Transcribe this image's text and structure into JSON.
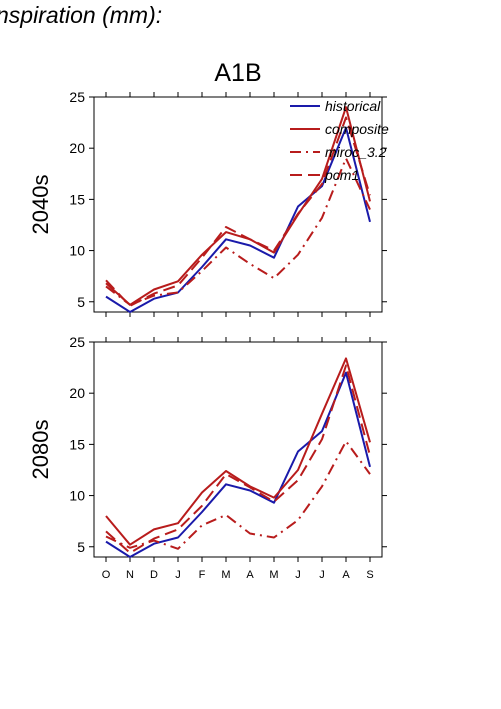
{
  "page_title": "nspiration (mm):",
  "chart_data": [
    {
      "type": "line",
      "title": "A1B",
      "ylabel": "2040s",
      "xlabel": "",
      "categories": [
        "O",
        "N",
        "D",
        "J",
        "F",
        "M",
        "A",
        "M",
        "J",
        "J",
        "A",
        "S"
      ],
      "ylim": [
        4,
        25
      ],
      "yticks": [
        5,
        10,
        15,
        20,
        25
      ],
      "legend": "top-right",
      "series": [
        {
          "name": "historical",
          "color": "#1a1aaa",
          "dash": "solid",
          "values": [
            5.5,
            4.0,
            5.3,
            5.9,
            8.4,
            11.1,
            10.5,
            9.3,
            14.3,
            16.3,
            22.0,
            12.8
          ]
        },
        {
          "name": "composite",
          "color": "#b81c1c",
          "dash": "solid",
          "values": [
            6.8,
            4.7,
            6.2,
            7.0,
            9.6,
            11.8,
            11.1,
            9.8,
            13.5,
            17.0,
            24.0,
            14.8
          ]
        },
        {
          "name": "miroc_3.2",
          "color": "#b81c1c",
          "dash": "dashdot",
          "values": [
            6.5,
            4.7,
            5.6,
            5.9,
            8.0,
            10.3,
            8.7,
            7.3,
            9.6,
            13.2,
            19.0,
            14.0
          ]
        },
        {
          "name": "pcm1",
          "color": "#b81c1c",
          "dash": "dash",
          "values": [
            7.1,
            4.6,
            5.8,
            6.6,
            9.3,
            12.3,
            11.1,
            10.0,
            13.6,
            16.5,
            23.0,
            15.4
          ]
        }
      ]
    },
    {
      "type": "line",
      "title": "",
      "ylabel": "2080s",
      "xlabel": "",
      "categories": [
        "O",
        "N",
        "D",
        "J",
        "F",
        "M",
        "A",
        "M",
        "J",
        "J",
        "A",
        "S"
      ],
      "ylim": [
        4,
        25
      ],
      "yticks": [
        5,
        10,
        15,
        20,
        25
      ],
      "series": [
        {
          "name": "historical",
          "color": "#1a1aaa",
          "dash": "solid",
          "values": [
            5.5,
            4.0,
            5.3,
            5.9,
            8.4,
            11.1,
            10.5,
            9.3,
            14.3,
            16.3,
            22.0,
            12.8
          ]
        },
        {
          "name": "composite",
          "color": "#b81c1c",
          "dash": "solid",
          "values": [
            8.0,
            5.2,
            6.7,
            7.3,
            10.3,
            12.4,
            10.9,
            9.8,
            12.5,
            18.0,
            23.4,
            15.2
          ]
        },
        {
          "name": "miroc_3.2",
          "color": "#b81c1c",
          "dash": "dashdot",
          "values": [
            6.0,
            4.9,
            5.6,
            4.8,
            7.1,
            8.1,
            6.3,
            5.9,
            7.6,
            10.9,
            15.3,
            12.1
          ]
        },
        {
          "name": "pcm1",
          "color": "#b81c1c",
          "dash": "dash",
          "values": [
            6.5,
            4.4,
            5.8,
            6.7,
            9.0,
            12.1,
            10.8,
            9.4,
            11.5,
            15.5,
            22.7,
            13.9
          ]
        }
      ]
    }
  ]
}
